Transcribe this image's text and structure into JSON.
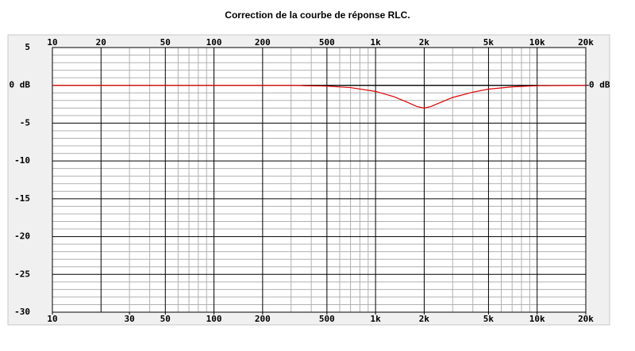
{
  "chart_data": {
    "type": "line",
    "title": "Correction de la courbe de réponse RLC.",
    "xscale": "log",
    "grid": true,
    "xlim": [
      10,
      20000
    ],
    "ylim": [
      -30,
      5
    ],
    "xticks": [
      10,
      30,
      50,
      100,
      200,
      500,
      {
        "value": 1000,
        "label": "1k"
      },
      {
        "value": 2000,
        "label": "2k"
      },
      {
        "value": 5000,
        "label": "5k"
      },
      {
        "value": 10000,
        "label": "10k"
      },
      {
        "value": 20000,
        "label": "20k"
      }
    ],
    "x2ticks": [
      10,
      20,
      50,
      100,
      200,
      500,
      {
        "value": 1000,
        "label": "1k"
      },
      {
        "value": 2000,
        "label": "2k"
      },
      {
        "value": 5000,
        "label": "5k"
      },
      {
        "value": 10000,
        "label": "10k"
      },
      {
        "value": 20000,
        "label": "20k"
      }
    ],
    "x_minor_ticks": [
      30,
      40,
      60,
      70,
      80,
      90,
      300,
      400,
      600,
      700,
      800,
      900,
      3000,
      4000,
      6000,
      7000,
      8000,
      9000
    ],
    "yticks": [
      5,
      {
        "value": 0,
        "label": "0 dB"
      },
      -5,
      -10,
      -15,
      -20,
      -25,
      -30
    ],
    "y2lim": [
      -30,
      5
    ],
    "y2ticks": [
      {
        "value": 0,
        "label": "0 dB"
      }
    ],
    "y_minor_ticks": [
      4,
      3,
      2,
      1,
      -1,
      -2,
      -3,
      -4,
      -6,
      -7,
      -8,
      -9,
      -11,
      -12,
      -13,
      -14,
      -16,
      -17,
      -18,
      -19,
      -21,
      -22,
      -23,
      -24,
      -26,
      -27,
      -28,
      -29
    ],
    "series": [
      {
        "color": "#000000",
        "x": [
          350,
          10000
        ],
        "values": [
          0,
          0
        ]
      },
      {
        "color": "#e00000",
        "x": [
          10,
          300,
          500,
          700,
          1000,
          1300,
          1600,
          1800,
          2000,
          2200,
          2500,
          3000,
          4000,
          5000,
          7000,
          10000,
          20000
        ],
        "values": [
          0,
          0,
          -0.1,
          -0.3,
          -0.8,
          -1.5,
          -2.3,
          -2.8,
          -3,
          -2.8,
          -2.3,
          -1.6,
          -0.9,
          -0.5,
          -0.2,
          -0.05,
          0
        ]
      }
    ]
  }
}
